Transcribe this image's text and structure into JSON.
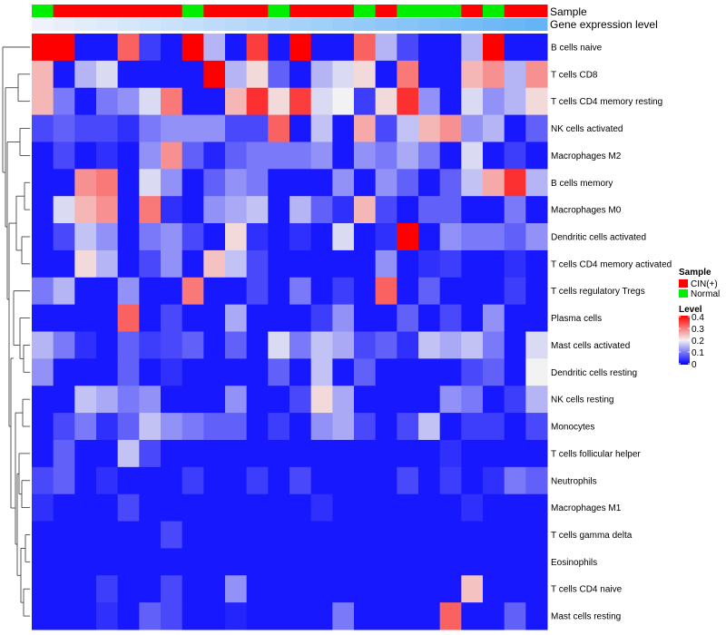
{
  "chart_data": {
    "type": "heatmap",
    "title": "",
    "annotations": {
      "sample_label": "Sample",
      "expression_label": "Gene expression level"
    },
    "columns": 24,
    "sample_groups": [
      "Normal",
      "CIN",
      "CIN",
      "CIN",
      "CIN",
      "CIN",
      "CIN",
      "Normal",
      "CIN",
      "CIN",
      "CIN",
      "Normal",
      "CIN",
      "CIN",
      "CIN",
      "Normal",
      "CIN",
      "Normal",
      "Normal",
      "Normal",
      "CIN",
      "Normal",
      "CIN",
      "CIN"
    ],
    "rows": [
      "B cells naive",
      "T cells CD8",
      "T cells CD4 memory resting",
      "NK cells activated",
      "Macrophages M2",
      "B cells memory",
      "Macrophages M0",
      "Dendritic cells activated",
      "T cells CD4 memory activated",
      "T cells regulatory  Tregs",
      "Plasma cells",
      "Mast cells activated",
      "Dendritic cells resting",
      "NK cells resting",
      "Monocytes",
      "T cells follicular helper",
      "Neutrophils",
      "Macrophages M1",
      "T cells gamma delta",
      "Eosinophils",
      "T cells CD4 naive",
      "Mast cells resting"
    ],
    "values": [
      [
        0.4,
        0.4,
        0.02,
        0.02,
        0.32,
        0.05,
        0.02,
        0.4,
        0.15,
        0.02,
        0.35,
        0.02,
        0.4,
        0.02,
        0.02,
        0.32,
        0.15,
        0.06,
        0.02,
        0.02,
        0.15,
        0.4,
        0.02,
        0.02
      ],
      [
        0.25,
        0.02,
        0.15,
        0.18,
        0.02,
        0.02,
        0.02,
        0.02,
        0.4,
        0.15,
        0.22,
        0.08,
        0.02,
        0.15,
        0.18,
        0.22,
        0.02,
        0.3,
        0.02,
        0.02,
        0.25,
        0.28,
        0.15,
        0.28
      ],
      [
        0.25,
        0.1,
        0.02,
        0.1,
        0.12,
        0.18,
        0.3,
        0.02,
        0.02,
        0.25,
        0.36,
        0.22,
        0.35,
        0.18,
        0.2,
        0.05,
        0.22,
        0.36,
        0.12,
        0.02,
        0.18,
        0.12,
        0.15,
        0.22
      ],
      [
        0.06,
        0.08,
        0.06,
        0.06,
        0.04,
        0.1,
        0.12,
        0.12,
        0.12,
        0.06,
        0.06,
        0.32,
        0.02,
        0.16,
        0.02,
        0.26,
        0.06,
        0.16,
        0.25,
        0.28,
        0.12,
        0.15,
        0.02,
        0.08
      ],
      [
        0.02,
        0.06,
        0.02,
        0.04,
        0.02,
        0.12,
        0.28,
        0.08,
        0.03,
        0.08,
        0.1,
        0.1,
        0.1,
        0.12,
        0.02,
        0.12,
        0.1,
        0.14,
        0.1,
        0.02,
        0.18,
        0.02,
        0.05,
        0.02
      ],
      [
        0.02,
        0.02,
        0.28,
        0.3,
        0.02,
        0.18,
        0.12,
        0.02,
        0.08,
        0.12,
        0.1,
        0.02,
        0.02,
        0.02,
        0.12,
        0.02,
        0.12,
        0.08,
        0.02,
        0.08,
        0.16,
        0.26,
        0.36,
        0.15
      ],
      [
        0.02,
        0.18,
        0.25,
        0.28,
        0.02,
        0.3,
        0.04,
        0.02,
        0.12,
        0.14,
        0.16,
        0.02,
        0.15,
        0.08,
        0.04,
        0.25,
        0.06,
        0.02,
        0.08,
        0.08,
        0.02,
        0.02,
        0.1,
        0.02
      ],
      [
        0.02,
        0.06,
        0.16,
        0.12,
        0.02,
        0.1,
        0.12,
        0.06,
        0.02,
        0.22,
        0.04,
        0.02,
        0.04,
        0.02,
        0.18,
        0.02,
        0.04,
        0.4,
        0.02,
        0.12,
        0.1,
        0.1,
        0.08,
        0.12
      ],
      [
        0.02,
        0.02,
        0.22,
        0.15,
        0.02,
        0.06,
        0.12,
        0.02,
        0.24,
        0.16,
        0.06,
        0.02,
        0.02,
        0.02,
        0.02,
        0.02,
        0.12,
        0.02,
        0.04,
        0.05,
        0.02,
        0.02,
        0.04,
        0.02
      ],
      [
        0.1,
        0.15,
        0.02,
        0.02,
        0.12,
        0.02,
        0.02,
        0.3,
        0.02,
        0.02,
        0.06,
        0.02,
        0.1,
        0.02,
        0.05,
        0.02,
        0.32,
        0.02,
        0.08,
        0.02,
        0.02,
        0.02,
        0.05,
        0.02
      ],
      [
        0.02,
        0.02,
        0.02,
        0.02,
        0.32,
        0.02,
        0.06,
        0.02,
        0.02,
        0.14,
        0.02,
        0.02,
        0.02,
        0.05,
        0.12,
        0.02,
        0.02,
        0.08,
        0.02,
        0.06,
        0.02,
        0.12,
        0.02,
        0.02
      ],
      [
        0.15,
        0.1,
        0.04,
        0.02,
        0.08,
        0.05,
        0.06,
        0.08,
        0.02,
        0.08,
        0.02,
        0.18,
        0.1,
        0.16,
        0.14,
        0.06,
        0.08,
        0.04,
        0.16,
        0.14,
        0.16,
        0.1,
        0.02,
        0.18
      ],
      [
        0.12,
        0.02,
        0.02,
        0.02,
        0.08,
        0.02,
        0.04,
        0.02,
        0.02,
        0.02,
        0.02,
        0.08,
        0.02,
        0.16,
        0.02,
        0.08,
        0.02,
        0.02,
        0.02,
        0.02,
        0.06,
        0.08,
        0.02,
        0.2
      ],
      [
        0.02,
        0.02,
        0.16,
        0.14,
        0.1,
        0.12,
        0.02,
        0.02,
        0.02,
        0.12,
        0.02,
        0.02,
        0.06,
        0.22,
        0.14,
        0.02,
        0.02,
        0.02,
        0.02,
        0.12,
        0.1,
        0.02,
        0.05,
        0.15
      ],
      [
        0.02,
        0.06,
        0.1,
        0.04,
        0.08,
        0.16,
        0.12,
        0.1,
        0.08,
        0.08,
        0.02,
        0.05,
        0.02,
        0.12,
        0.14,
        0.06,
        0.02,
        0.06,
        0.16,
        0.02,
        0.05,
        0.05,
        0.02,
        0.06
      ],
      [
        0.02,
        0.08,
        0.02,
        0.02,
        0.16,
        0.06,
        0.02,
        0.02,
        0.02,
        0.02,
        0.02,
        0.02,
        0.02,
        0.02,
        0.02,
        0.02,
        0.02,
        0.02,
        0.02,
        0.04,
        0.02,
        0.02,
        0.02,
        0.02
      ],
      [
        0.06,
        0.08,
        0.02,
        0.04,
        0.02,
        0.02,
        0.02,
        0.05,
        0.02,
        0.02,
        0.05,
        0.02,
        0.06,
        0.02,
        0.02,
        0.02,
        0.02,
        0.06,
        0.02,
        0.05,
        0.02,
        0.04,
        0.1,
        0.08
      ],
      [
        0.04,
        0.02,
        0.02,
        0.02,
        0.06,
        0.02,
        0.02,
        0.02,
        0.02,
        0.02,
        0.02,
        0.02,
        0.02,
        0.04,
        0.02,
        0.02,
        0.02,
        0.02,
        0.02,
        0.02,
        0.04,
        0.02,
        0.02,
        0.02
      ],
      [
        0.02,
        0.02,
        0.02,
        0.02,
        0.02,
        0.02,
        0.06,
        0.02,
        0.02,
        0.02,
        0.02,
        0.02,
        0.02,
        0.02,
        0.02,
        0.02,
        0.02,
        0.02,
        0.02,
        0.02,
        0.02,
        0.02,
        0.02,
        0.02
      ],
      [
        0.02,
        0.02,
        0.02,
        0.02,
        0.02,
        0.02,
        0.02,
        0.02,
        0.02,
        0.02,
        0.02,
        0.02,
        0.02,
        0.02,
        0.02,
        0.02,
        0.02,
        0.02,
        0.02,
        0.02,
        0.02,
        0.02,
        0.02,
        0.02
      ],
      [
        0.02,
        0.02,
        0.02,
        0.05,
        0.02,
        0.02,
        0.06,
        0.02,
        0.02,
        0.12,
        0.02,
        0.02,
        0.02,
        0.02,
        0.02,
        0.02,
        0.02,
        0.02,
        0.02,
        0.02,
        0.24,
        0.02,
        0.02,
        0.02
      ],
      [
        0.02,
        0.02,
        0.02,
        0.04,
        0.02,
        0.08,
        0.06,
        0.02,
        0.02,
        0.03,
        0.02,
        0.02,
        0.02,
        0.02,
        0.1,
        0.02,
        0.02,
        0.02,
        0.02,
        0.32,
        0.02,
        0.02,
        0.08,
        0.02
      ]
    ],
    "color_scale": {
      "min": 0,
      "max": 0.4,
      "stops": [
        {
          "value": 0.0,
          "color": "#0000ff"
        },
        {
          "value": 0.2,
          "color": "#f2f2f2"
        },
        {
          "value": 0.4,
          "color": "#ff0000"
        }
      ]
    },
    "legend": {
      "sample_title": "Sample",
      "sample_entries": [
        {
          "label": "CIN(+)",
          "color": "#ff0000"
        },
        {
          "label": "Normal",
          "color": "#00ee00"
        }
      ],
      "level_title": "Level",
      "level_ticks": [
        "0.4",
        "0.3",
        "0.2",
        "0.1",
        "0"
      ],
      "placement": "right"
    },
    "dendrogram": "rows"
  }
}
